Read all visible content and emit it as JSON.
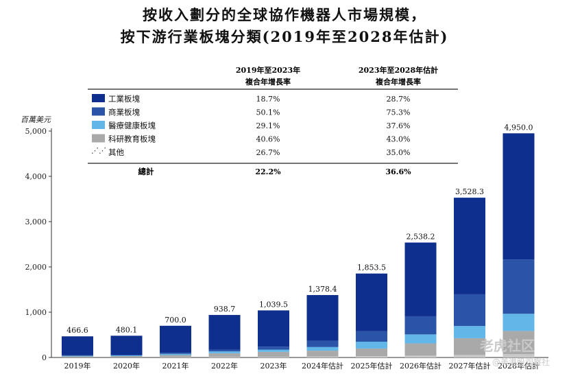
{
  "title_line1": "按收入劃分的全球協作機器人市場規模，",
  "title_line2": "按下游行業板塊分類(2019年至2028年估計)",
  "watermark": {
    "brand": "老虎社区",
    "sub": "@美港股观察社"
  },
  "chart_data": {
    "type": "bar",
    "stacked": true,
    "ylabel": "百萬美元",
    "ylim": [
      0,
      5000
    ],
    "yticks": [
      "0",
      "1,000",
      "2,000",
      "3,000",
      "4,000",
      "5,000"
    ],
    "ytick_values": [
      0,
      1000,
      2000,
      3000,
      4000,
      5000
    ],
    "categories": [
      "2019年",
      "2020年",
      "2021年",
      "2022年",
      "2023年",
      "2024年估計",
      "2025年估計",
      "2026年估計",
      "2027年估計",
      "2028年估計"
    ],
    "totals": [
      466.6,
      480.1,
      700.0,
      938.7,
      1039.5,
      1378.4,
      1853.5,
      2538.2,
      3528.3,
      4950.0
    ],
    "total_labels": [
      "466.6",
      "480.1",
      "700.0",
      "938.7",
      "1,039.5",
      "1,378.4",
      "1,853.5",
      "2,538.2",
      "3,528.3",
      "4,950.0"
    ],
    "series": [
      {
        "name": "其他",
        "color": "#c8c8c8",
        "values": [
          5,
          5,
          8,
          12,
          14,
          20,
          28,
          40,
          55,
          75
        ]
      },
      {
        "name": "科研教育板塊",
        "color": "#a9a9a9",
        "values": [
          20,
          25,
          45,
          80,
          110,
          130,
          170,
          270,
          370,
          510
        ]
      },
      {
        "name": "醫療健康板塊",
        "color": "#63b6e8",
        "values": [
          12,
          15,
          25,
          42,
          50,
          80,
          150,
          200,
          270,
          380
        ]
      },
      {
        "name": "商業板塊",
        "color": "#2a54a8",
        "values": [
          10,
          15,
          25,
          35,
          65,
          140,
          230,
          400,
          700,
          1200
        ]
      },
      {
        "name": "工業板塊",
        "color": "#0e2f8e",
        "values": [
          419.6,
          420.1,
          597.0,
          769.7,
          800.5,
          1008.4,
          1275.5,
          1628.2,
          2133.3,
          2785.0
        ]
      }
    ],
    "growth_table": {
      "headers": [
        "2019年至2023年\n複合年增長率",
        "2023年至2028年估計\n複合年增長率"
      ],
      "header_col1": [
        "2019年至2023年",
        "複合年增長率"
      ],
      "header_col2": [
        "2023年至2028年估計",
        "複合年增長率"
      ],
      "rows": [
        {
          "name": "工業板塊",
          "color": "#0e2f8e",
          "cagr_2019_2023": "18.7%",
          "cagr_2023_2028": "28.7%"
        },
        {
          "name": "商業板塊",
          "color": "#2a54a8",
          "cagr_2019_2023": "50.1%",
          "cagr_2023_2028": "75.3%"
        },
        {
          "name": "醫療健康板塊",
          "color": "#63b6e8",
          "cagr_2019_2023": "29.1%",
          "cagr_2023_2028": "37.6%"
        },
        {
          "name": "科研教育板塊",
          "color": "#a9a9a9",
          "cagr_2019_2023": "40.6%",
          "cagr_2023_2028": "43.0%"
        },
        {
          "name": "其他",
          "color": "#c8c8c8",
          "cagr_2019_2023": "26.7%",
          "cagr_2023_2028": "35.0%"
        }
      ],
      "total": {
        "name": "總計",
        "cagr_2019_2023": "22.2%",
        "cagr_2023_2028": "36.6%"
      }
    }
  }
}
